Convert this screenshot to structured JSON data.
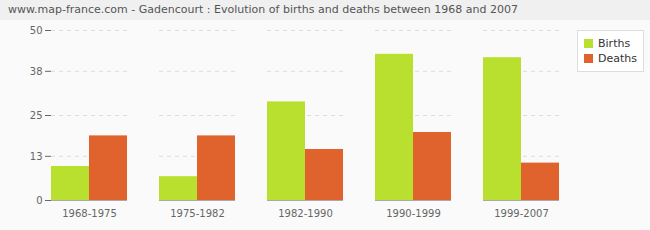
{
  "chart_data": {
    "type": "bar",
    "title": "www.map-france.com - Gadencourt : Evolution of births and deaths between 1968 and 2007",
    "categories": [
      "1968-1975",
      "1975-1982",
      "1982-1990",
      "1990-1999",
      "1999-2007"
    ],
    "series": [
      {
        "name": "Births",
        "color": "#b9e02f",
        "values": [
          10,
          7,
          29,
          43,
          42
        ]
      },
      {
        "name": "Deaths",
        "color": "#e0622d",
        "values": [
          19,
          19,
          15,
          20,
          11
        ]
      }
    ],
    "ylim": [
      0,
      50
    ],
    "yticks": [
      0,
      13,
      25,
      38,
      50
    ],
    "grid": true,
    "legend": "top-right"
  }
}
